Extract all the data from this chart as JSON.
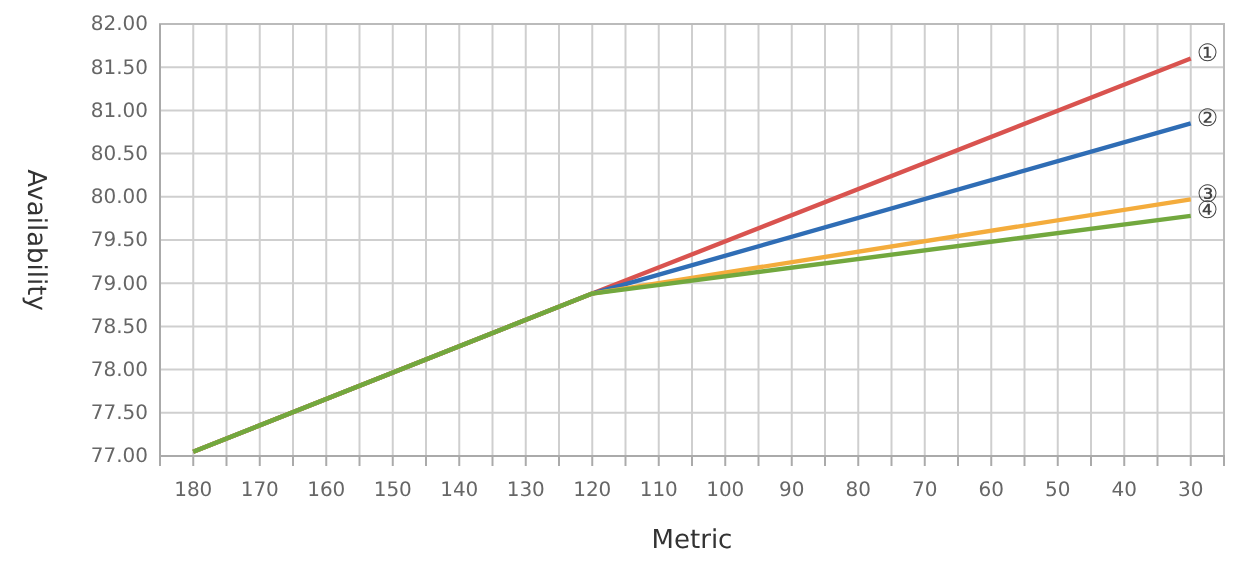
{
  "chart_data": {
    "type": "line",
    "xlabel": "Metric",
    "ylabel": "Availability",
    "x": [
      180,
      120,
      30
    ],
    "xlim": [
      185,
      25
    ],
    "xticks": [
      180,
      {
        "value": 175,
        "label": null
      },
      170,
      {
        "value": 165,
        "label": null
      },
      160,
      {
        "value": 155,
        "label": null
      },
      150,
      {
        "value": 145,
        "label": null
      },
      140,
      {
        "value": 135,
        "label": null
      },
      130,
      {
        "value": 125,
        "label": null
      },
      120,
      {
        "value": 115,
        "label": null
      },
      110,
      {
        "value": 105,
        "label": null
      },
      100,
      {
        "value": 95,
        "label": null
      },
      90,
      {
        "value": 85,
        "label": null
      },
      80,
      {
        "value": 75,
        "label": null
      },
      70,
      {
        "value": 65,
        "label": null
      },
      60,
      {
        "value": 55,
        "label": null
      },
      50,
      {
        "value": 45,
        "label": null
      },
      40,
      {
        "value": 35,
        "label": null
      },
      30
    ],
    "ylim": [
      77,
      82
    ],
    "yticks": [
      {
        "value": 77,
        "label": "77.00"
      },
      {
        "value": 77.5,
        "label": "77.50"
      },
      {
        "value": 78,
        "label": "78.00"
      },
      {
        "value": 78.5,
        "label": "78.50"
      },
      {
        "value": 79,
        "label": "79.00"
      },
      {
        "value": 79.5,
        "label": "79.50"
      },
      {
        "value": 80,
        "label": "80.00"
      },
      {
        "value": 80.5,
        "label": "80.50"
      },
      {
        "value": 81,
        "label": "81.00"
      },
      {
        "value": 81.5,
        "label": "81.50"
      },
      {
        "value": 82,
        "label": "82.00"
      }
    ],
    "grid": true,
    "legend": false,
    "marker": "none",
    "line_style": "solid",
    "series": [
      {
        "name": "①",
        "color": "#d9534f",
        "values": [
          77.05,
          78.88,
          81.6
        ]
      },
      {
        "name": "②",
        "color": "#2f6db5",
        "values": [
          77.05,
          78.88,
          80.85
        ]
      },
      {
        "name": "③",
        "color": "#f4ac3c",
        "values": [
          77.05,
          78.88,
          79.97
        ]
      },
      {
        "name": "④",
        "color": "#72a83e",
        "values": [
          77.05,
          78.88,
          79.78
        ]
      }
    ]
  }
}
